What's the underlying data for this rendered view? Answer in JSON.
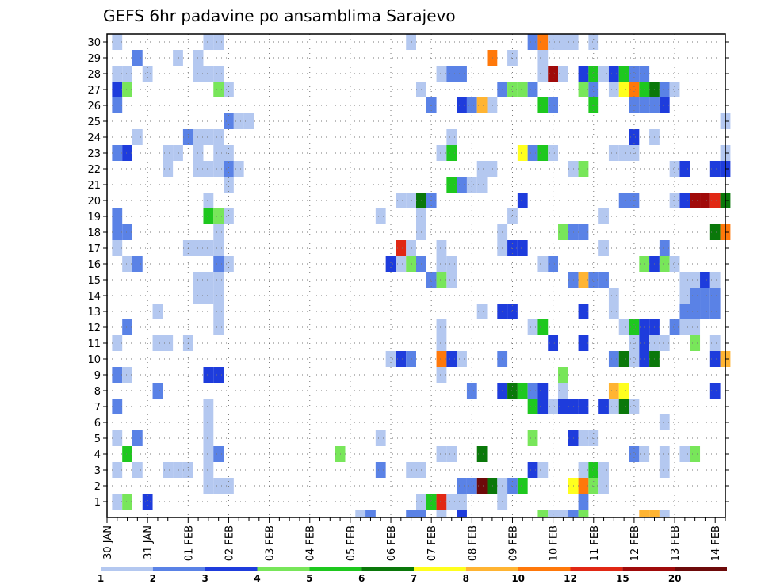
{
  "chart_data": {
    "type": "heatmap",
    "title": "GEFS 6hr padavine po ansamblima Sarajevo",
    "xlabel": "",
    "ylabel": "",
    "y_members": [
      1,
      2,
      3,
      4,
      5,
      6,
      7,
      8,
      9,
      10,
      11,
      12,
      13,
      14,
      15,
      16,
      17,
      18,
      19,
      20,
      21,
      22,
      23,
      24,
      25,
      26,
      27,
      28,
      29,
      30
    ],
    "x_tick_labels": [
      "30 JAN",
      "31 JAN",
      "01 FEB",
      "02 FEB",
      "03 FEB",
      "04 FEB",
      "05 FEB",
      "06 FEB",
      "07 FEB",
      "08 FEB",
      "09 FEB",
      "10 FEB",
      "11 FEB",
      "12 FEB",
      "13 FEB",
      "14 FEB"
    ],
    "columns_per_day": 4,
    "total_columns": 61,
    "colorbar": {
      "labels": [
        "1",
        "2",
        "3",
        "4",
        "5",
        "6",
        "7",
        "8",
        "10",
        "12",
        "15",
        "20"
      ],
      "colors": [
        "#b4c8f0",
        "#5a82e6",
        "#1e3cdc",
        "#78e65a",
        "#1ec81e",
        "#0a780a",
        "#ffff1e",
        "#ffb432",
        "#ff780a",
        "#e12814",
        "#a00a0a",
        "#6e0a0a"
      ]
    },
    "cells": [
      [
        1,
        1,
        0
      ],
      [
        1,
        2,
        3
      ],
      [
        1,
        4,
        2
      ],
      [
        1,
        31,
        0
      ],
      [
        1,
        32,
        4
      ],
      [
        1,
        33,
        9
      ],
      [
        1,
        34,
        0
      ],
      [
        1,
        35,
        0
      ],
      [
        1,
        39,
        0
      ],
      [
        1,
        47,
        1
      ],
      [
        2,
        10,
        0
      ],
      [
        2,
        11,
        0
      ],
      [
        2,
        12,
        0
      ],
      [
        2,
        35,
        1
      ],
      [
        2,
        36,
        1
      ],
      [
        2,
        37,
        11
      ],
      [
        2,
        38,
        5
      ],
      [
        2,
        39,
        0
      ],
      [
        2,
        40,
        1
      ],
      [
        2,
        41,
        4
      ],
      [
        2,
        46,
        6
      ],
      [
        2,
        47,
        8
      ],
      [
        2,
        48,
        3
      ],
      [
        2,
        49,
        0
      ],
      [
        3,
        1,
        0
      ],
      [
        3,
        3,
        0
      ],
      [
        3,
        6,
        0
      ],
      [
        3,
        7,
        0
      ],
      [
        3,
        8,
        0
      ],
      [
        3,
        10,
        0
      ],
      [
        3,
        27,
        1
      ],
      [
        3,
        30,
        0
      ],
      [
        3,
        31,
        0
      ],
      [
        3,
        42,
        2
      ],
      [
        3,
        43,
        0
      ],
      [
        3,
        47,
        0
      ],
      [
        3,
        48,
        4
      ],
      [
        3,
        49,
        0
      ],
      [
        3,
        55,
        0
      ],
      [
        4,
        2,
        4
      ],
      [
        4,
        10,
        0
      ],
      [
        4,
        11,
        1
      ],
      [
        4,
        23,
        3
      ],
      [
        4,
        33,
        0
      ],
      [
        4,
        34,
        0
      ],
      [
        4,
        37,
        5
      ],
      [
        4,
        52,
        1
      ],
      [
        4,
        53,
        0
      ],
      [
        4,
        55,
        0
      ],
      [
        4,
        57,
        0
      ],
      [
        4,
        58,
        3
      ],
      [
        5,
        1,
        0
      ],
      [
        5,
        3,
        1
      ],
      [
        5,
        10,
        0
      ],
      [
        5,
        27,
        0
      ],
      [
        5,
        42,
        3
      ],
      [
        5,
        46,
        2
      ],
      [
        5,
        47,
        0
      ],
      [
        5,
        48,
        0
      ],
      [
        6,
        10,
        0
      ],
      [
        6,
        55,
        0
      ],
      [
        7,
        1,
        1
      ],
      [
        7,
        10,
        0
      ],
      [
        7,
        42,
        4
      ],
      [
        7,
        43,
        2
      ],
      [
        7,
        44,
        0
      ],
      [
        7,
        45,
        2
      ],
      [
        7,
        46,
        2
      ],
      [
        7,
        47,
        2
      ],
      [
        7,
        49,
        2
      ],
      [
        7,
        50,
        0
      ],
      [
        7,
        51,
        5
      ],
      [
        7,
        52,
        0
      ],
      [
        8,
        5,
        1
      ],
      [
        8,
        36,
        1
      ],
      [
        8,
        39,
        2
      ],
      [
        8,
        40,
        5
      ],
      [
        8,
        41,
        4
      ],
      [
        8,
        42,
        1
      ],
      [
        8,
        43,
        2
      ],
      [
        8,
        45,
        0
      ],
      [
        8,
        50,
        7
      ],
      [
        8,
        51,
        6
      ],
      [
        8,
        60,
        2
      ],
      [
        9,
        1,
        1
      ],
      [
        9,
        2,
        0
      ],
      [
        9,
        10,
        2
      ],
      [
        9,
        11,
        2
      ],
      [
        9,
        33,
        0
      ],
      [
        9,
        45,
        3
      ],
      [
        10,
        28,
        0
      ],
      [
        10,
        29,
        2
      ],
      [
        10,
        30,
        1
      ],
      [
        10,
        33,
        8
      ],
      [
        10,
        34,
        2
      ],
      [
        10,
        35,
        0
      ],
      [
        10,
        39,
        1
      ],
      [
        10,
        50,
        1
      ],
      [
        10,
        51,
        5
      ],
      [
        10,
        52,
        0
      ],
      [
        10,
        53,
        2
      ],
      [
        10,
        54,
        5
      ],
      [
        10,
        60,
        2
      ],
      [
        10,
        61,
        7
      ],
      [
        11,
        1,
        0
      ],
      [
        11,
        5,
        0
      ],
      [
        11,
        6,
        0
      ],
      [
        11,
        8,
        0
      ],
      [
        11,
        33,
        0
      ],
      [
        11,
        44,
        2
      ],
      [
        11,
        47,
        2
      ],
      [
        11,
        52,
        0
      ],
      [
        11,
        53,
        2
      ],
      [
        11,
        54,
        0
      ],
      [
        11,
        55,
        0
      ],
      [
        11,
        58,
        3
      ],
      [
        11,
        60,
        0
      ],
      [
        12,
        2,
        1
      ],
      [
        12,
        11,
        0
      ],
      [
        12,
        33,
        0
      ],
      [
        12,
        42,
        0
      ],
      [
        12,
        43,
        4
      ],
      [
        12,
        51,
        0
      ],
      [
        12,
        52,
        4
      ],
      [
        12,
        53,
        2
      ],
      [
        12,
        54,
        2
      ],
      [
        12,
        56,
        1
      ],
      [
        12,
        57,
        0
      ],
      [
        12,
        58,
        0
      ],
      [
        13,
        5,
        0
      ],
      [
        13,
        11,
        0
      ],
      [
        13,
        37,
        0
      ],
      [
        13,
        39,
        2
      ],
      [
        13,
        40,
        2
      ],
      [
        13,
        47,
        2
      ],
      [
        13,
        50,
        0
      ],
      [
        13,
        57,
        1
      ],
      [
        13,
        58,
        1
      ],
      [
        13,
        59,
        1
      ],
      [
        13,
        60,
        1
      ],
      [
        14,
        9,
        0
      ],
      [
        14,
        10,
        0
      ],
      [
        14,
        11,
        0
      ],
      [
        14,
        50,
        0
      ],
      [
        14,
        57,
        0
      ],
      [
        14,
        58,
        1
      ],
      [
        14,
        59,
        1
      ],
      [
        14,
        60,
        1
      ],
      [
        15,
        9,
        0
      ],
      [
        15,
        10,
        0
      ],
      [
        15,
        11,
        0
      ],
      [
        15,
        32,
        1
      ],
      [
        15,
        33,
        3
      ],
      [
        15,
        34,
        0
      ],
      [
        15,
        46,
        1
      ],
      [
        15,
        47,
        7
      ],
      [
        15,
        48,
        1
      ],
      [
        15,
        49,
        1
      ],
      [
        15,
        57,
        0
      ],
      [
        15,
        58,
        0
      ],
      [
        15,
        59,
        2
      ],
      [
        15,
        60,
        0
      ],
      [
        16,
        2,
        0
      ],
      [
        16,
        3,
        1
      ],
      [
        16,
        11,
        1
      ],
      [
        16,
        12,
        0
      ],
      [
        16,
        28,
        2
      ],
      [
        16,
        29,
        0
      ],
      [
        16,
        30,
        3
      ],
      [
        16,
        31,
        1
      ],
      [
        16,
        33,
        0
      ],
      [
        16,
        34,
        0
      ],
      [
        16,
        43,
        0
      ],
      [
        16,
        44,
        1
      ],
      [
        16,
        53,
        3
      ],
      [
        16,
        54,
        2
      ],
      [
        16,
        55,
        3
      ],
      [
        16,
        56,
        0
      ],
      [
        17,
        1,
        0
      ],
      [
        17,
        8,
        0
      ],
      [
        17,
        9,
        0
      ],
      [
        17,
        10,
        0
      ],
      [
        17,
        11,
        0
      ],
      [
        17,
        29,
        9
      ],
      [
        17,
        30,
        0
      ],
      [
        17,
        33,
        0
      ],
      [
        17,
        39,
        0
      ],
      [
        17,
        40,
        2
      ],
      [
        17,
        41,
        2
      ],
      [
        17,
        49,
        0
      ],
      [
        17,
        55,
        1
      ],
      [
        18,
        1,
        1
      ],
      [
        18,
        2,
        1
      ],
      [
        18,
        11,
        0
      ],
      [
        18,
        31,
        0
      ],
      [
        18,
        39,
        0
      ],
      [
        18,
        45,
        3
      ],
      [
        18,
        46,
        1
      ],
      [
        18,
        47,
        1
      ],
      [
        18,
        60,
        5
      ],
      [
        18,
        61,
        8
      ],
      [
        19,
        1,
        1
      ],
      [
        19,
        10,
        4
      ],
      [
        19,
        11,
        3
      ],
      [
        19,
        12,
        0
      ],
      [
        19,
        27,
        0
      ],
      [
        19,
        31,
        0
      ],
      [
        19,
        40,
        0
      ],
      [
        19,
        49,
        0
      ],
      [
        20,
        10,
        0
      ],
      [
        20,
        29,
        0
      ],
      [
        20,
        30,
        0
      ],
      [
        20,
        31,
        5
      ],
      [
        20,
        32,
        1
      ],
      [
        20,
        41,
        2
      ],
      [
        20,
        51,
        1
      ],
      [
        20,
        52,
        1
      ],
      [
        20,
        56,
        0
      ],
      [
        20,
        57,
        2
      ],
      [
        20,
        58,
        10
      ],
      [
        20,
        59,
        10
      ],
      [
        20,
        60,
        9
      ],
      [
        20,
        61,
        5
      ],
      [
        21,
        12,
        0
      ],
      [
        21,
        34,
        4
      ],
      [
        21,
        35,
        1
      ],
      [
        21,
        36,
        0
      ],
      [
        21,
        37,
        0
      ],
      [
        22,
        6,
        0
      ],
      [
        22,
        9,
        0
      ],
      [
        22,
        10,
        0
      ],
      [
        22,
        11,
        0
      ],
      [
        22,
        12,
        1
      ],
      [
        22,
        13,
        0
      ],
      [
        22,
        37,
        0
      ],
      [
        22,
        38,
        0
      ],
      [
        22,
        46,
        0
      ],
      [
        22,
        47,
        3
      ],
      [
        22,
        56,
        0
      ],
      [
        22,
        57,
        2
      ],
      [
        22,
        60,
        2
      ],
      [
        22,
        61,
        2
      ],
      [
        23,
        1,
        1
      ],
      [
        23,
        2,
        2
      ],
      [
        23,
        6,
        0
      ],
      [
        23,
        7,
        0
      ],
      [
        23,
        9,
        0
      ],
      [
        23,
        11,
        0
      ],
      [
        23,
        12,
        0
      ],
      [
        23,
        33,
        0
      ],
      [
        23,
        34,
        4
      ],
      [
        23,
        41,
        6
      ],
      [
        23,
        42,
        1
      ],
      [
        23,
        43,
        4
      ],
      [
        23,
        44,
        0
      ],
      [
        23,
        50,
        0
      ],
      [
        23,
        51,
        0
      ],
      [
        23,
        52,
        0
      ],
      [
        23,
        61,
        0
      ],
      [
        24,
        3,
        0
      ],
      [
        24,
        8,
        1
      ],
      [
        24,
        9,
        0
      ],
      [
        24,
        10,
        0
      ],
      [
        24,
        11,
        0
      ],
      [
        24,
        34,
        0
      ],
      [
        24,
        52,
        2
      ],
      [
        24,
        54,
        0
      ],
      [
        25,
        12,
        1
      ],
      [
        25,
        13,
        0
      ],
      [
        25,
        14,
        0
      ],
      [
        25,
        61,
        0
      ],
      [
        26,
        1,
        1
      ],
      [
        26,
        32,
        1
      ],
      [
        26,
        35,
        2
      ],
      [
        26,
        36,
        1
      ],
      [
        26,
        37,
        7
      ],
      [
        26,
        38,
        0
      ],
      [
        26,
        43,
        4
      ],
      [
        26,
        44,
        1
      ],
      [
        26,
        48,
        4
      ],
      [
        26,
        52,
        1
      ],
      [
        26,
        53,
        1
      ],
      [
        26,
        54,
        1
      ],
      [
        26,
        55,
        2
      ],
      [
        27,
        1,
        2
      ],
      [
        27,
        2,
        3
      ],
      [
        27,
        11,
        3
      ],
      [
        27,
        12,
        0
      ],
      [
        27,
        31,
        0
      ],
      [
        27,
        39,
        1
      ],
      [
        27,
        40,
        3
      ],
      [
        27,
        41,
        3
      ],
      [
        27,
        42,
        1
      ],
      [
        27,
        47,
        3
      ],
      [
        27,
        48,
        1
      ],
      [
        27,
        50,
        0
      ],
      [
        27,
        51,
        6
      ],
      [
        27,
        52,
        8
      ],
      [
        27,
        53,
        4
      ],
      [
        27,
        54,
        5
      ],
      [
        27,
        55,
        1
      ],
      [
        27,
        56,
        0
      ],
      [
        28,
        1,
        0
      ],
      [
        28,
        2,
        0
      ],
      [
        28,
        4,
        0
      ],
      [
        28,
        9,
        0
      ],
      [
        28,
        10,
        0
      ],
      [
        28,
        11,
        0
      ],
      [
        28,
        33,
        0
      ],
      [
        28,
        34,
        1
      ],
      [
        28,
        35,
        1
      ],
      [
        28,
        43,
        0
      ],
      [
        28,
        44,
        10
      ],
      [
        28,
        45,
        0
      ],
      [
        28,
        47,
        2
      ],
      [
        28,
        48,
        4
      ],
      [
        28,
        49,
        0
      ],
      [
        28,
        50,
        2
      ],
      [
        28,
        51,
        4
      ],
      [
        28,
        52,
        1
      ],
      [
        28,
        53,
        1
      ],
      [
        29,
        3,
        1
      ],
      [
        29,
        7,
        0
      ],
      [
        29,
        9,
        0
      ],
      [
        29,
        38,
        8
      ],
      [
        29,
        40,
        0
      ],
      [
        29,
        43,
        0
      ],
      [
        30,
        1,
        0
      ],
      [
        30,
        10,
        0
      ],
      [
        30,
        11,
        0
      ],
      [
        30,
        30,
        0
      ],
      [
        30,
        42,
        1
      ],
      [
        30,
        43,
        8
      ],
      [
        30,
        44,
        0
      ],
      [
        30,
        45,
        0
      ],
      [
        30,
        46,
        0
      ],
      [
        30,
        48,
        0
      ],
      [
        0,
        25,
        0
      ],
      [
        0,
        26,
        1
      ],
      [
        0,
        30,
        1
      ],
      [
        0,
        31,
        1
      ],
      [
        0,
        33,
        0
      ],
      [
        0,
        35,
        2
      ],
      [
        0,
        43,
        3
      ],
      [
        0,
        44,
        0
      ],
      [
        0,
        45,
        0
      ],
      [
        0,
        46,
        1
      ],
      [
        0,
        47,
        3
      ],
      [
        0,
        53,
        7
      ],
      [
        0,
        54,
        7
      ],
      [
        0,
        55,
        0
      ]
    ]
  }
}
